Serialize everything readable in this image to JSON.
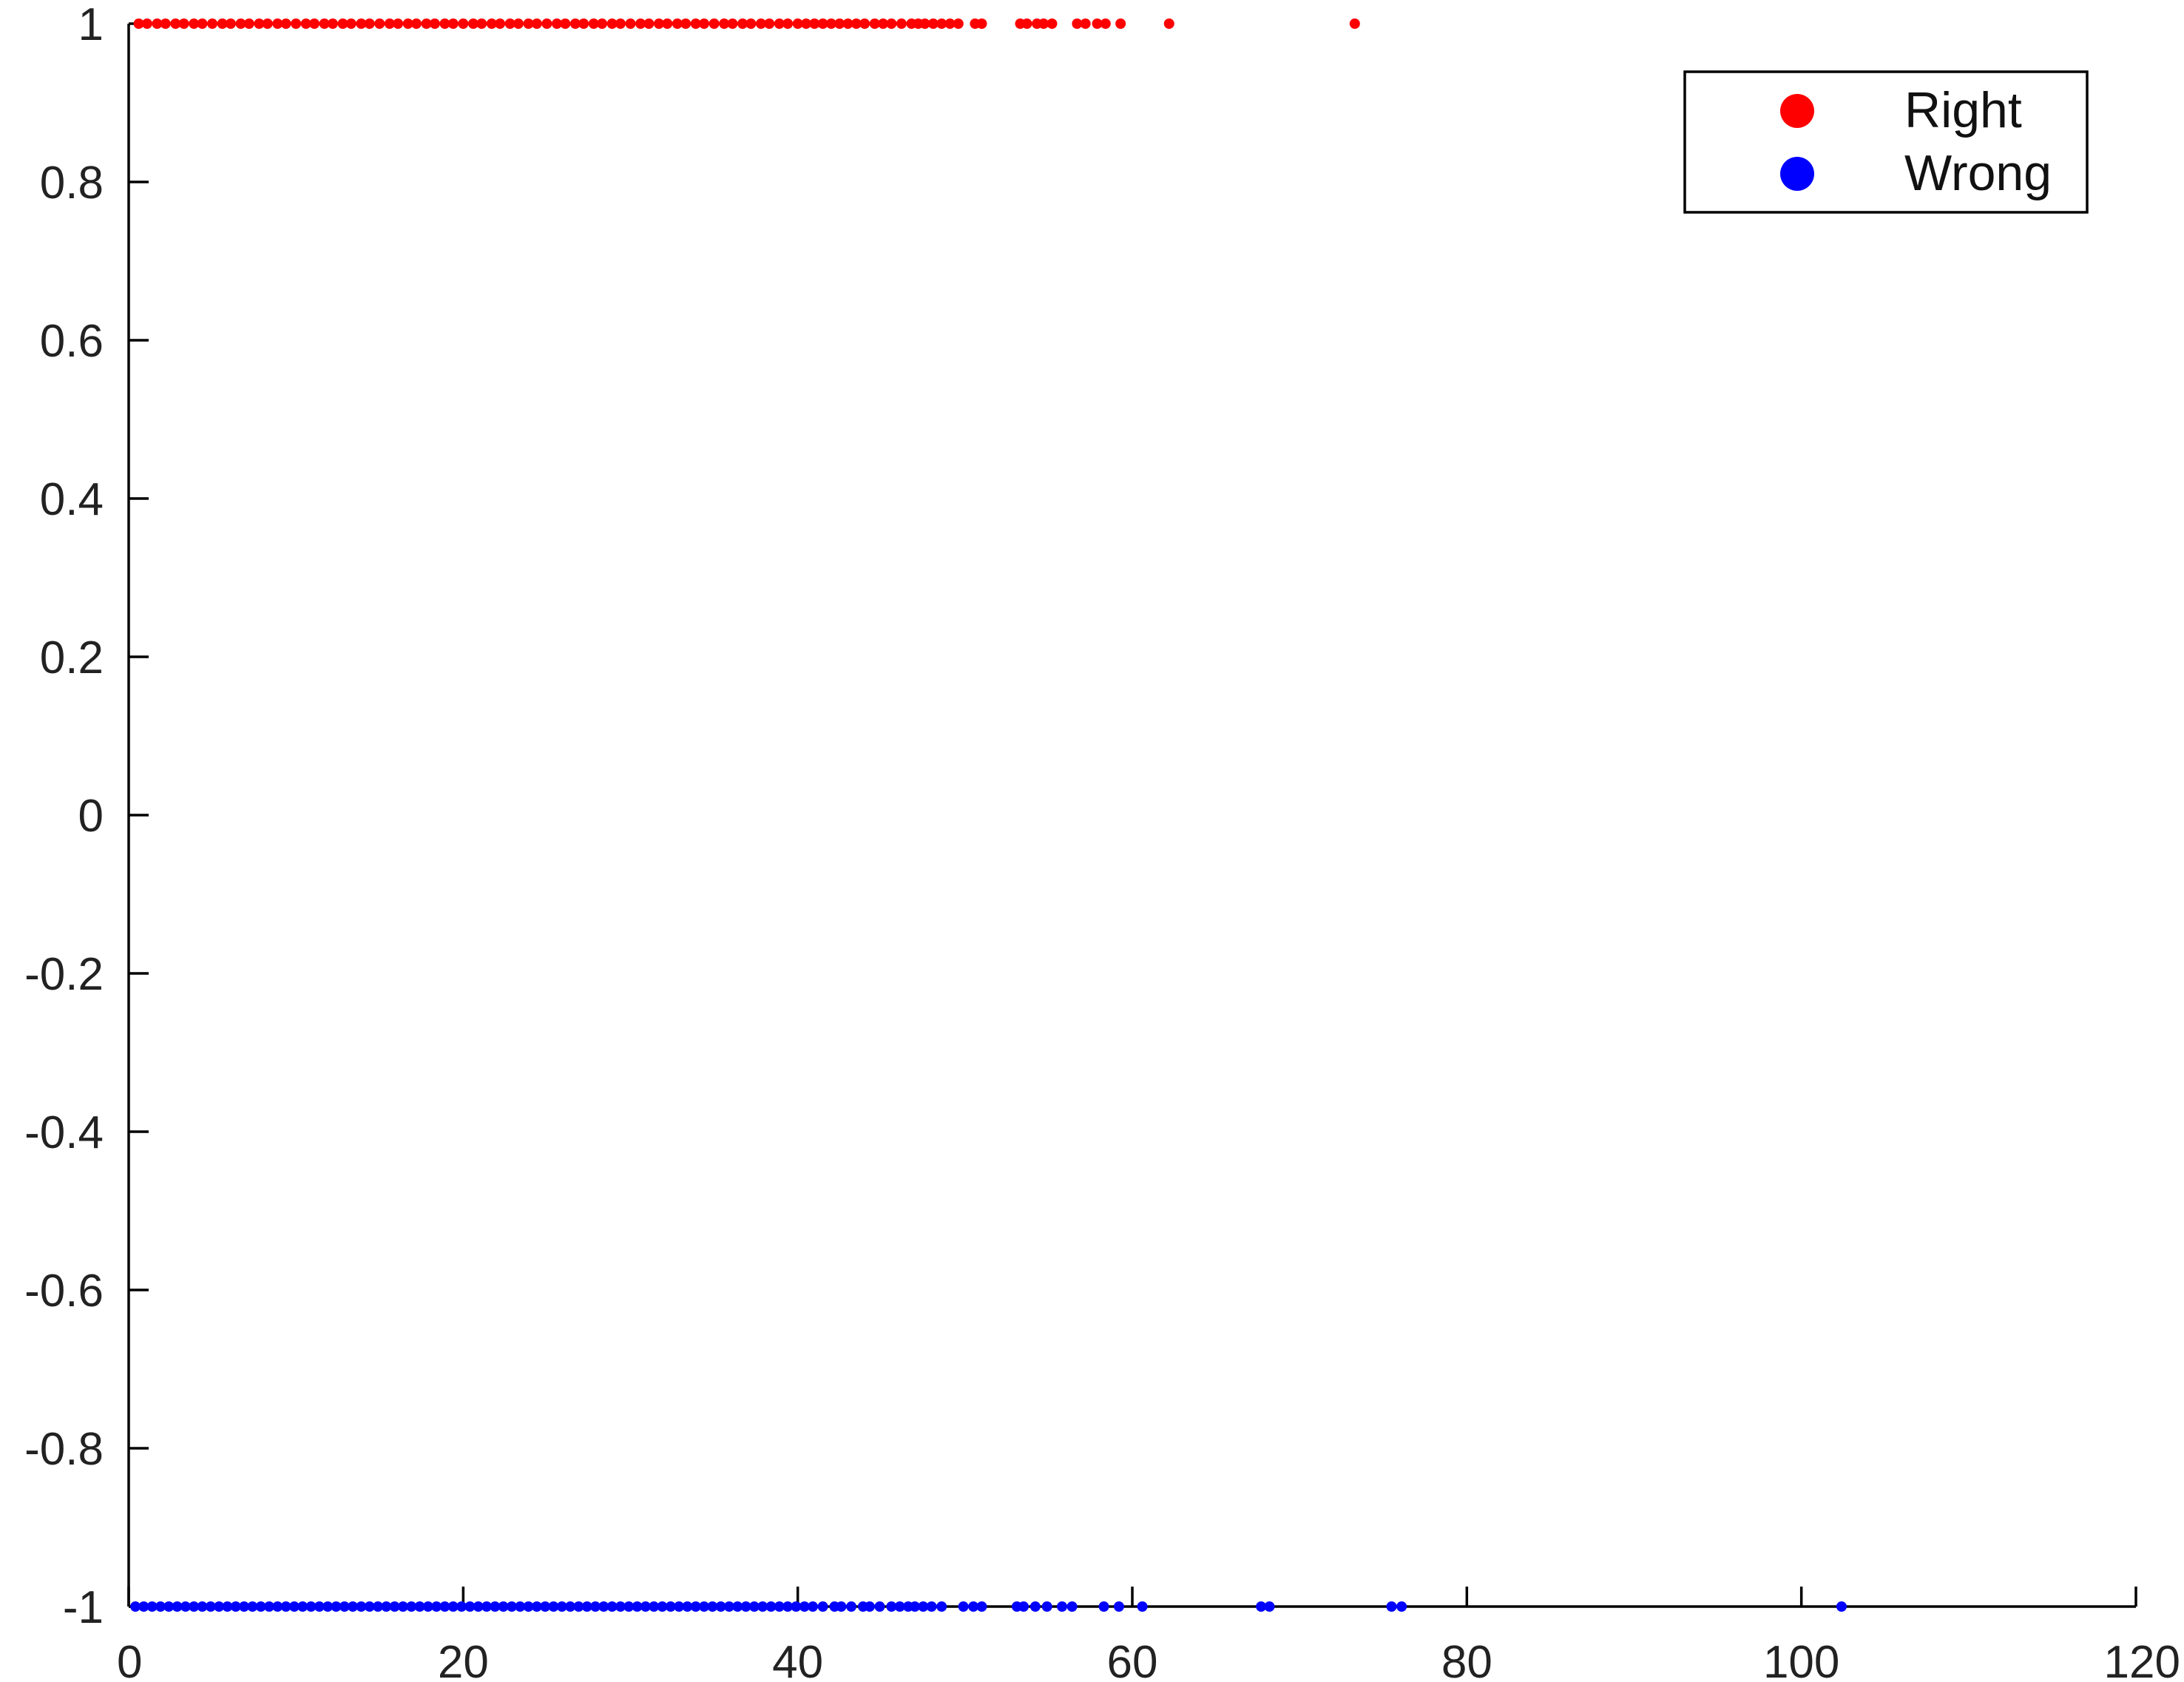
{
  "chart_data": {
    "type": "scatter",
    "title": "",
    "xlabel": "",
    "ylabel": "",
    "xlim": [
      0,
      120
    ],
    "ylim": [
      -1,
      1
    ],
    "xticks": [
      "0",
      "20",
      "40",
      "60",
      "80",
      "100",
      "120"
    ],
    "yticks": [
      "1",
      "0.8",
      "0.6",
      "0.4",
      "0.2",
      "0",
      "-0.2",
      "-0.4",
      "-0.6",
      "-0.8",
      "-1"
    ],
    "grid": false,
    "legend_position": "top-right",
    "series": [
      {
        "name": "Right",
        "color": "#ff0000",
        "y": 1,
        "x": [
          0.6,
          1.1,
          1.7,
          2.2,
          2.8,
          3.3,
          3.9,
          4.4,
          5.0,
          5.6,
          6.1,
          6.7,
          7.2,
          7.8,
          8.3,
          8.9,
          9.4,
          10.0,
          10.6,
          11.1,
          11.7,
          12.2,
          12.8,
          13.3,
          13.9,
          14.4,
          15.0,
          15.6,
          16.1,
          16.7,
          17.2,
          17.8,
          18.3,
          18.9,
          19.4,
          20.0,
          20.6,
          21.1,
          21.7,
          22.2,
          22.8,
          23.3,
          23.9,
          24.4,
          25.0,
          25.6,
          26.1,
          26.7,
          27.2,
          27.8,
          28.3,
          28.9,
          29.4,
          30.0,
          30.6,
          31.1,
          31.7,
          32.2,
          32.8,
          33.3,
          33.9,
          34.4,
          35.0,
          35.6,
          36.1,
          36.7,
          37.2,
          37.8,
          38.3,
          38.9,
          39.4,
          40.0,
          40.5,
          41.0,
          41.5,
          42.0,
          42.5,
          43.0,
          43.5,
          44.0,
          44.6,
          45.1,
          45.6,
          46.2,
          46.8,
          47.2,
          47.6,
          48.1,
          48.6,
          49.1,
          49.6,
          50.6,
          51.0,
          53.3,
          53.7,
          54.3,
          54.7,
          55.2,
          56.7,
          57.2,
          57.9,
          58.4,
          59.3,
          62.2,
          73.3
        ]
      },
      {
        "name": "Wrong",
        "color": "#0000ff",
        "y": -1,
        "x": [
          0.4,
          0.9,
          1.4,
          1.9,
          2.4,
          2.9,
          3.4,
          3.9,
          4.4,
          4.9,
          5.4,
          5.9,
          6.4,
          6.9,
          7.4,
          7.9,
          8.4,
          8.9,
          9.4,
          9.9,
          10.4,
          10.9,
          11.4,
          11.9,
          12.4,
          12.9,
          13.4,
          13.9,
          14.4,
          14.9,
          15.4,
          15.9,
          16.4,
          16.9,
          17.4,
          17.9,
          18.4,
          18.9,
          19.4,
          19.9,
          20.4,
          20.9,
          21.4,
          21.9,
          22.4,
          22.9,
          23.4,
          23.9,
          24.4,
          24.9,
          25.4,
          25.9,
          26.4,
          26.9,
          27.4,
          27.9,
          28.4,
          28.9,
          29.4,
          29.9,
          30.4,
          30.9,
          31.4,
          31.9,
          32.4,
          32.9,
          33.4,
          33.9,
          34.4,
          34.9,
          35.4,
          35.9,
          36.4,
          36.9,
          37.4,
          37.9,
          38.4,
          38.9,
          39.4,
          39.9,
          40.4,
          40.9,
          41.5,
          42.2,
          42.6,
          43.2,
          43.9,
          44.3,
          44.9,
          45.6,
          46.1,
          46.6,
          47.0,
          47.5,
          48.0,
          48.6,
          49.9,
          50.5,
          51.0,
          53.1,
          53.5,
          54.2,
          54.9,
          55.8,
          56.4,
          58.3,
          59.2,
          60.6,
          67.7,
          68.2,
          75.5,
          76.1,
          102.4
        ]
      }
    ]
  }
}
